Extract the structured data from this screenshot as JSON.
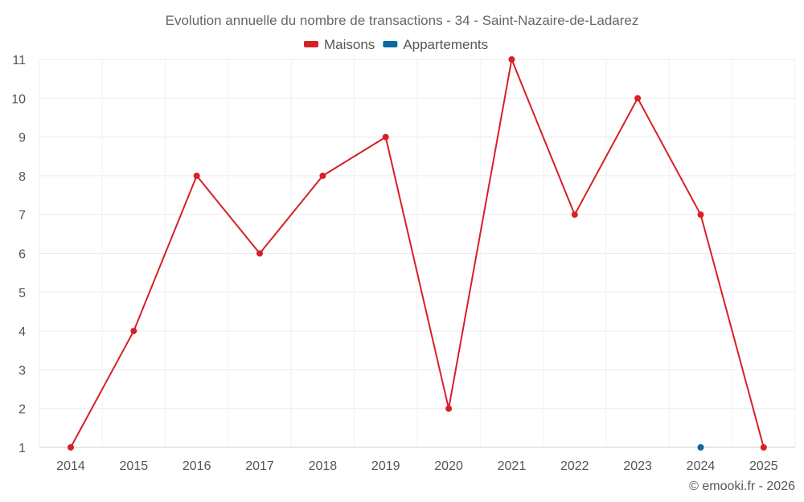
{
  "chart_data": {
    "type": "line",
    "title": "Evolution annuelle du nombre de transactions - 34 - Saint-Nazaire-de-Ladarez",
    "categories": [
      "2014",
      "2015",
      "2016",
      "2017",
      "2018",
      "2019",
      "2020",
      "2021",
      "2022",
      "2023",
      "2024",
      "2025"
    ],
    "series": [
      {
        "name": "Maisons",
        "color": "#d62027",
        "values": [
          1,
          4,
          8,
          6,
          8,
          9,
          2,
          11,
          7,
          10,
          7,
          1
        ]
      },
      {
        "name": "Appartements",
        "color": "#0a6aa1",
        "values": [
          null,
          null,
          null,
          null,
          null,
          null,
          null,
          null,
          null,
          null,
          1,
          null
        ]
      }
    ],
    "yticks": [
      "1",
      "2",
      "3",
      "4",
      "5",
      "6",
      "7",
      "8",
      "9",
      "10",
      "11"
    ],
    "ylim": [
      1,
      11
    ],
    "xlabel": "",
    "ylabel": "",
    "grid": true,
    "legend_position": "top-center"
  },
  "credit": "© emooki.fr - 2026"
}
